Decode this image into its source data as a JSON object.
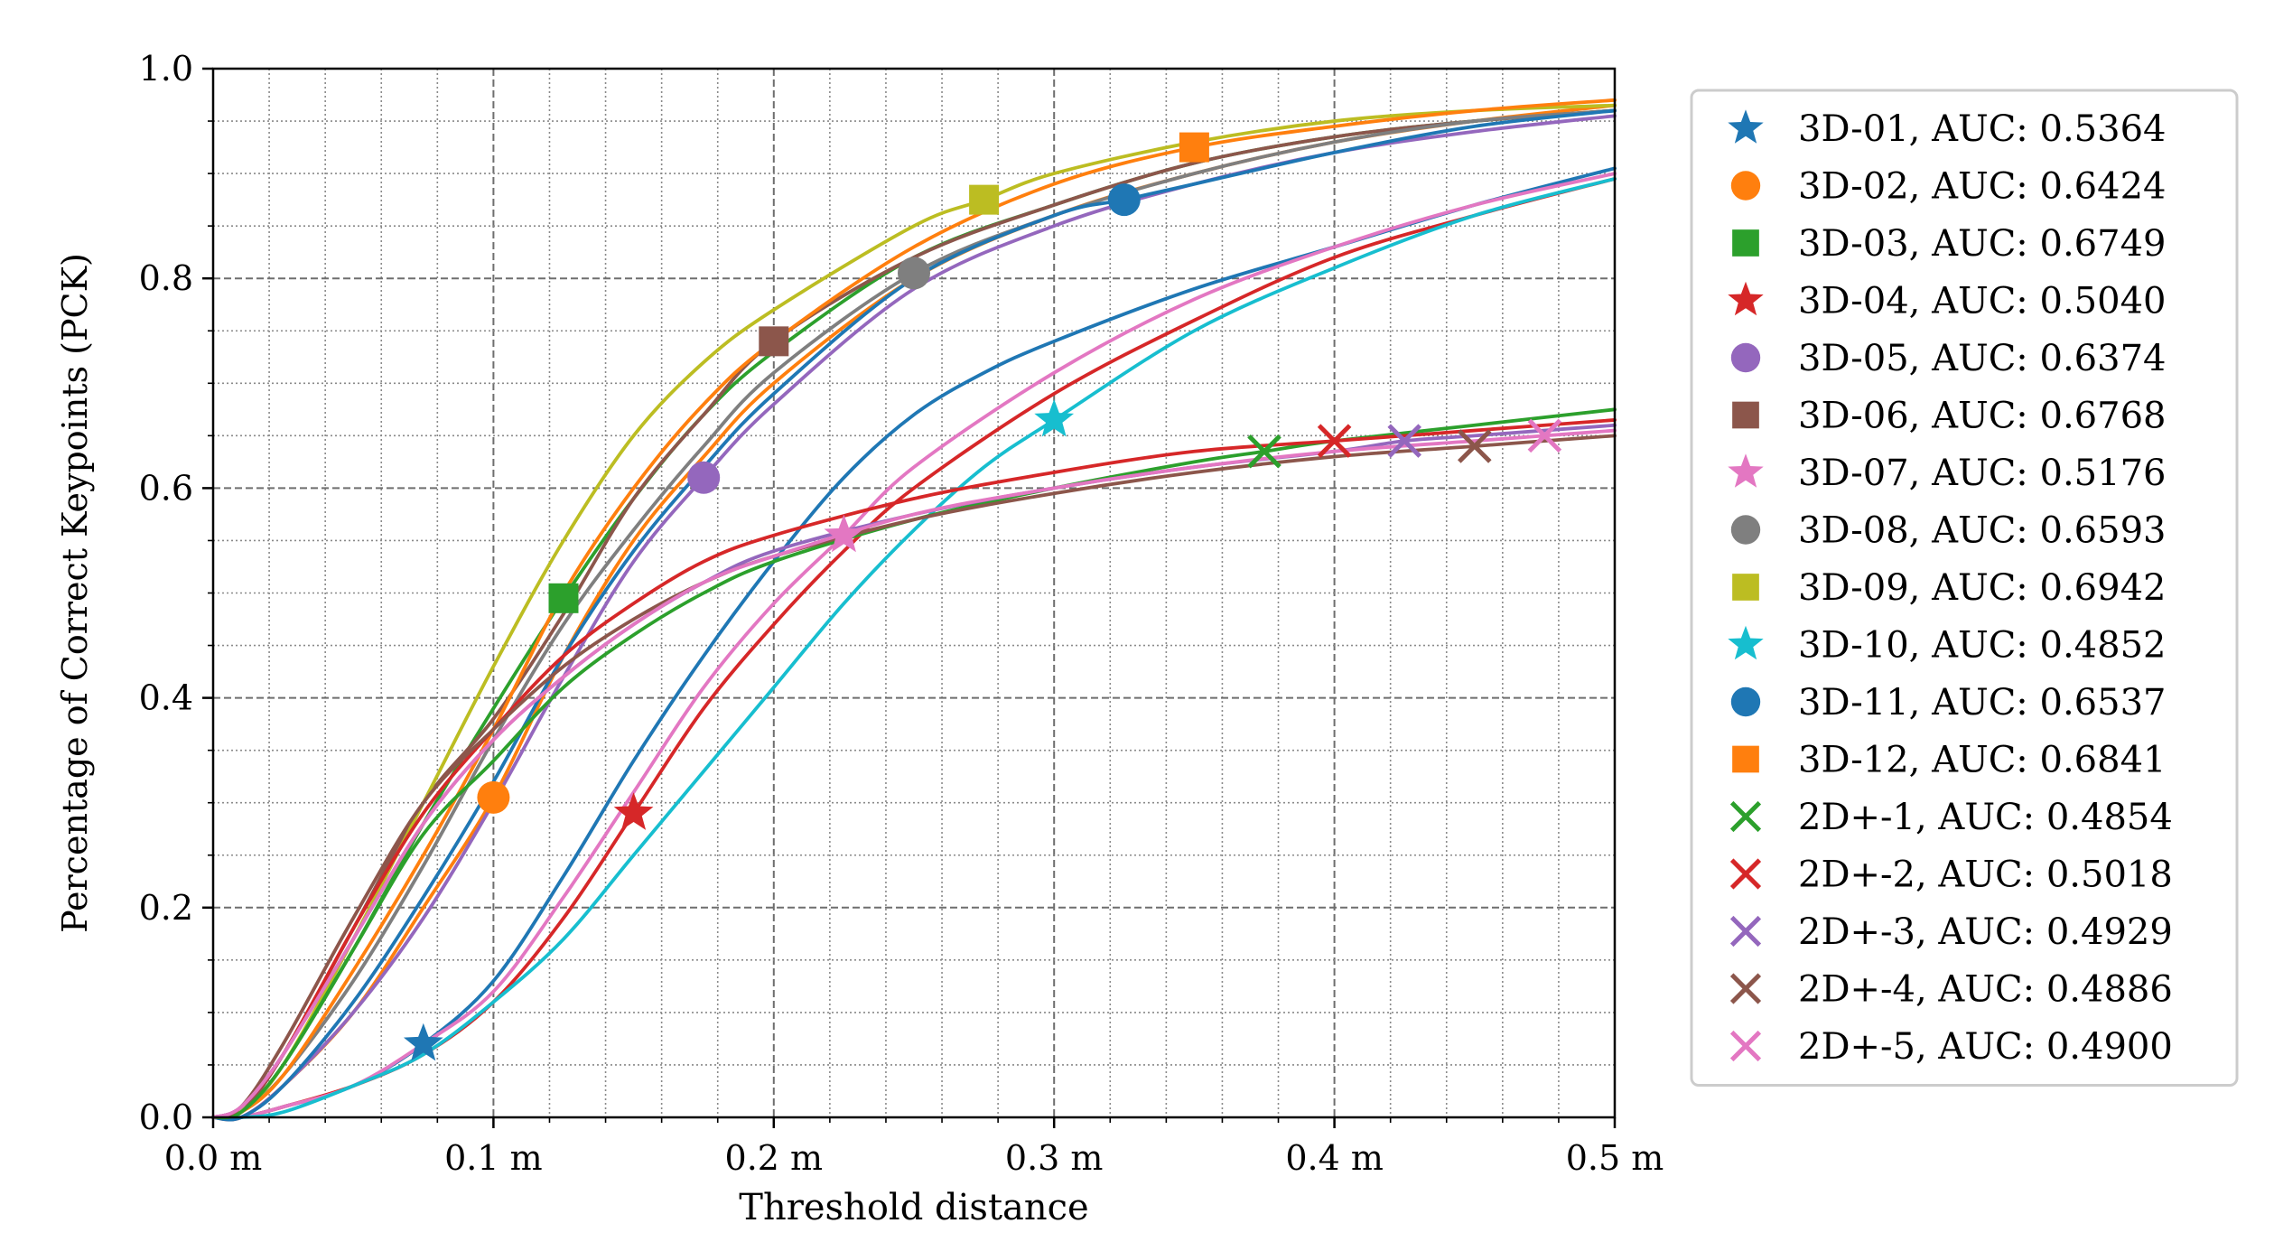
{
  "chart_data": {
    "type": "line",
    "title": "",
    "xlabel": "Threshold distance",
    "ylabel": "Percentage of Correct Keypoints (PCK)",
    "xlim": [
      0,
      0.5
    ],
    "ylim": [
      0,
      1
    ],
    "grid": true,
    "legend_position": "outside-right",
    "xticks": [
      {
        "value": 0.0,
        "label": "0.0 m"
      },
      {
        "value": 0.1,
        "label": "0.1 m"
      },
      {
        "value": 0.2,
        "label": "0.2 m"
      },
      {
        "value": 0.3,
        "label": "0.3 m"
      },
      {
        "value": 0.4,
        "label": "0.4 m"
      },
      {
        "value": 0.5,
        "label": "0.5 m"
      }
    ],
    "yticks": [
      {
        "value": 0.0,
        "label": "0.0"
      },
      {
        "value": 0.2,
        "label": "0.2"
      },
      {
        "value": 0.4,
        "label": "0.4"
      },
      {
        "value": 0.6,
        "label": "0.6"
      },
      {
        "value": 0.8,
        "label": "0.8"
      },
      {
        "value": 1.0,
        "label": "1.0"
      }
    ],
    "series": [
      {
        "name": "3D-01",
        "legend_label": "3D-01, AUC: 0.5364",
        "color": "#1f77b4",
        "marker": "star",
        "marker_at": [
          0.075,
          0.07
        ],
        "x": [
          0,
          0.01,
          0.025,
          0.05,
          0.075,
          0.1,
          0.125,
          0.15,
          0.175,
          0.2,
          0.225,
          0.25,
          0.275,
          0.3,
          0.35,
          0.4,
          0.45,
          0.5
        ],
        "y": [
          0,
          0.0,
          0.01,
          0.03,
          0.07,
          0.13,
          0.23,
          0.34,
          0.44,
          0.53,
          0.61,
          0.67,
          0.71,
          0.74,
          0.79,
          0.83,
          0.87,
          0.905
        ]
      },
      {
        "name": "3D-02",
        "legend_label": "3D-02, AUC: 0.6424",
        "color": "#ff7f0e",
        "marker": "circle",
        "marker_at": [
          0.1,
          0.305
        ],
        "x": [
          0,
          0.01,
          0.025,
          0.05,
          0.075,
          0.1,
          0.125,
          0.15,
          0.175,
          0.2,
          0.25,
          0.3,
          0.35,
          0.4,
          0.45,
          0.5
        ],
        "y": [
          0,
          0.0,
          0.03,
          0.1,
          0.2,
          0.305,
          0.44,
          0.55,
          0.63,
          0.7,
          0.8,
          0.86,
          0.9,
          0.93,
          0.95,
          0.965
        ]
      },
      {
        "name": "3D-03",
        "legend_label": "3D-03, AUC: 0.6749",
        "color": "#2ca02c",
        "marker": "square",
        "marker_at": [
          0.125,
          0.495
        ],
        "x": [
          0,
          0.01,
          0.025,
          0.05,
          0.075,
          0.1,
          0.125,
          0.15,
          0.175,
          0.2,
          0.25,
          0.3,
          0.35,
          0.4,
          0.45,
          0.5
        ],
        "y": [
          0,
          0.005,
          0.05,
          0.16,
          0.28,
          0.39,
          0.495,
          0.59,
          0.67,
          0.73,
          0.82,
          0.87,
          0.91,
          0.935,
          0.95,
          0.96
        ]
      },
      {
        "name": "3D-04",
        "legend_label": "3D-04, AUC: 0.5040",
        "color": "#d62728",
        "marker": "star",
        "marker_at": [
          0.15,
          0.29
        ],
        "x": [
          0,
          0.01,
          0.025,
          0.05,
          0.075,
          0.1,
          0.125,
          0.15,
          0.175,
          0.2,
          0.225,
          0.25,
          0.3,
          0.35,
          0.4,
          0.45,
          0.5
        ],
        "y": [
          0,
          0.0,
          0.01,
          0.03,
          0.06,
          0.11,
          0.19,
          0.29,
          0.39,
          0.47,
          0.54,
          0.6,
          0.69,
          0.76,
          0.82,
          0.86,
          0.895
        ]
      },
      {
        "name": "3D-05",
        "legend_label": "3D-05, AUC: 0.6374",
        "color": "#9467bd",
        "marker": "circle",
        "marker_at": [
          0.175,
          0.61
        ],
        "x": [
          0,
          0.01,
          0.025,
          0.05,
          0.075,
          0.1,
          0.125,
          0.15,
          0.175,
          0.2,
          0.25,
          0.3,
          0.35,
          0.4,
          0.45,
          0.5
        ],
        "y": [
          0,
          0.0,
          0.03,
          0.1,
          0.19,
          0.3,
          0.42,
          0.53,
          0.61,
          0.68,
          0.79,
          0.85,
          0.89,
          0.92,
          0.94,
          0.955
        ]
      },
      {
        "name": "3D-06",
        "legend_label": "3D-06, AUC: 0.6768",
        "color": "#8c564b",
        "marker": "square",
        "marker_at": [
          0.2,
          0.74
        ],
        "x": [
          0,
          0.01,
          0.025,
          0.05,
          0.075,
          0.1,
          0.125,
          0.15,
          0.175,
          0.2,
          0.25,
          0.3,
          0.35,
          0.4,
          0.45,
          0.5
        ],
        "y": [
          0,
          0.005,
          0.06,
          0.18,
          0.3,
          0.38,
          0.48,
          0.59,
          0.67,
          0.74,
          0.82,
          0.87,
          0.91,
          0.935,
          0.95,
          0.96
        ]
      },
      {
        "name": "3D-07",
        "legend_label": "3D-07, AUC: 0.5176",
        "color": "#e377c2",
        "marker": "star",
        "marker_at": [
          0.225,
          0.555
        ],
        "x": [
          0,
          0.01,
          0.025,
          0.05,
          0.075,
          0.1,
          0.125,
          0.15,
          0.175,
          0.2,
          0.225,
          0.25,
          0.3,
          0.35,
          0.4,
          0.45,
          0.5
        ],
        "y": [
          0,
          0.0,
          0.01,
          0.03,
          0.07,
          0.12,
          0.21,
          0.31,
          0.41,
          0.49,
          0.555,
          0.62,
          0.71,
          0.78,
          0.83,
          0.87,
          0.9
        ]
      },
      {
        "name": "3D-08",
        "legend_label": "3D-08, AUC: 0.6593",
        "color": "#7f7f7f",
        "marker": "circle",
        "marker_at": [
          0.25,
          0.805
        ],
        "x": [
          0,
          0.01,
          0.025,
          0.05,
          0.075,
          0.1,
          0.125,
          0.15,
          0.175,
          0.2,
          0.25,
          0.3,
          0.35,
          0.4,
          0.45,
          0.5
        ],
        "y": [
          0,
          0.005,
          0.04,
          0.13,
          0.24,
          0.36,
          0.47,
          0.56,
          0.64,
          0.71,
          0.805,
          0.86,
          0.9,
          0.93,
          0.95,
          0.96
        ]
      },
      {
        "name": "3D-09",
        "legend_label": "3D-09, AUC: 0.6942",
        "color": "#bcbd22",
        "marker": "square",
        "marker_at": [
          0.275,
          0.875
        ],
        "x": [
          0,
          0.01,
          0.025,
          0.05,
          0.075,
          0.1,
          0.125,
          0.15,
          0.175,
          0.2,
          0.25,
          0.275,
          0.3,
          0.35,
          0.4,
          0.45,
          0.5
        ],
        "y": [
          0,
          0.005,
          0.05,
          0.17,
          0.3,
          0.43,
          0.55,
          0.65,
          0.72,
          0.77,
          0.85,
          0.875,
          0.9,
          0.93,
          0.95,
          0.96,
          0.965
        ]
      },
      {
        "name": "3D-10",
        "legend_label": "3D-10, AUC: 0.4852",
        "color": "#17becf",
        "marker": "star",
        "marker_at": [
          0.3,
          0.665
        ],
        "x": [
          0,
          0.01,
          0.025,
          0.05,
          0.075,
          0.1,
          0.125,
          0.15,
          0.175,
          0.2,
          0.225,
          0.25,
          0.275,
          0.3,
          0.35,
          0.4,
          0.45,
          0.5
        ],
        "y": [
          0,
          0.0,
          0.005,
          0.03,
          0.06,
          0.11,
          0.17,
          0.25,
          0.33,
          0.41,
          0.49,
          0.56,
          0.62,
          0.665,
          0.75,
          0.81,
          0.86,
          0.895
        ]
      },
      {
        "name": "3D-11",
        "legend_label": "3D-11, AUC: 0.6537",
        "color": "#1f77b4",
        "marker": "circle",
        "marker_at": [
          0.325,
          0.875
        ],
        "x": [
          0,
          0.01,
          0.025,
          0.05,
          0.075,
          0.1,
          0.125,
          0.15,
          0.175,
          0.2,
          0.25,
          0.3,
          0.325,
          0.35,
          0.4,
          0.45,
          0.5
        ],
        "y": [
          0,
          0.0,
          0.03,
          0.11,
          0.21,
          0.32,
          0.44,
          0.54,
          0.62,
          0.69,
          0.8,
          0.86,
          0.875,
          0.89,
          0.92,
          0.945,
          0.96
        ]
      },
      {
        "name": "3D-12",
        "legend_label": "3D-12, AUC: 0.6841",
        "color": "#ff7f0e",
        "marker": "square",
        "marker_at": [
          0.35,
          0.925
        ],
        "x": [
          0,
          0.01,
          0.025,
          0.05,
          0.075,
          0.1,
          0.125,
          0.15,
          0.175,
          0.2,
          0.25,
          0.3,
          0.35,
          0.4,
          0.45,
          0.5
        ],
        "y": [
          0,
          0.005,
          0.04,
          0.14,
          0.25,
          0.37,
          0.5,
          0.6,
          0.68,
          0.74,
          0.83,
          0.89,
          0.925,
          0.945,
          0.96,
          0.97
        ]
      },
      {
        "name": "2D+-1",
        "legend_label": "2D+-1, AUC: 0.4854",
        "color": "#2ca02c",
        "marker": "x",
        "marker_at": [
          0.375,
          0.635
        ],
        "x": [
          0,
          0.01,
          0.025,
          0.05,
          0.075,
          0.1,
          0.125,
          0.15,
          0.175,
          0.2,
          0.25,
          0.3,
          0.35,
          0.375,
          0.4,
          0.45,
          0.5
        ],
        "y": [
          0,
          0.005,
          0.05,
          0.16,
          0.27,
          0.34,
          0.41,
          0.46,
          0.5,
          0.53,
          0.57,
          0.6,
          0.625,
          0.635,
          0.645,
          0.66,
          0.675
        ]
      },
      {
        "name": "2D+-2",
        "legend_label": "2D+-2, AUC: 0.5018",
        "color": "#d62728",
        "marker": "x",
        "marker_at": [
          0.4,
          0.645
        ],
        "x": [
          0,
          0.01,
          0.025,
          0.05,
          0.075,
          0.1,
          0.125,
          0.15,
          0.175,
          0.2,
          0.25,
          0.3,
          0.35,
          0.4,
          0.45,
          0.5
        ],
        "y": [
          0,
          0.01,
          0.06,
          0.18,
          0.29,
          0.37,
          0.44,
          0.49,
          0.53,
          0.555,
          0.59,
          0.615,
          0.635,
          0.645,
          0.655,
          0.665
        ]
      },
      {
        "name": "2D+-3",
        "legend_label": "2D+-3, AUC: 0.4929",
        "color": "#9467bd",
        "marker": "x",
        "marker_at": [
          0.425,
          0.645
        ],
        "x": [
          0,
          0.01,
          0.025,
          0.05,
          0.075,
          0.1,
          0.125,
          0.15,
          0.175,
          0.2,
          0.25,
          0.3,
          0.35,
          0.4,
          0.425,
          0.45,
          0.5
        ],
        "y": [
          0,
          0.01,
          0.06,
          0.17,
          0.28,
          0.36,
          0.42,
          0.47,
          0.51,
          0.54,
          0.575,
          0.6,
          0.62,
          0.635,
          0.645,
          0.65,
          0.66
        ]
      },
      {
        "name": "2D+-4",
        "legend_label": "2D+-4, AUC: 0.4886",
        "color": "#8c564b",
        "marker": "x",
        "marker_at": [
          0.45,
          0.64
        ],
        "x": [
          0,
          0.01,
          0.025,
          0.05,
          0.075,
          0.1,
          0.125,
          0.15,
          0.175,
          0.2,
          0.25,
          0.3,
          0.35,
          0.4,
          0.45,
          0.5
        ],
        "y": [
          0,
          0.01,
          0.07,
          0.19,
          0.3,
          0.37,
          0.43,
          0.475,
          0.51,
          0.535,
          0.57,
          0.595,
          0.615,
          0.63,
          0.64,
          0.65
        ]
      },
      {
        "name": "2D+-5",
        "legend_label": "2D+-5, AUC: 0.4900",
        "color": "#e377c2",
        "marker": "x",
        "marker_at": [
          0.475,
          0.65
        ],
        "x": [
          0,
          0.01,
          0.025,
          0.05,
          0.075,
          0.1,
          0.125,
          0.15,
          0.175,
          0.2,
          0.25,
          0.3,
          0.35,
          0.4,
          0.45,
          0.475,
          0.5
        ],
        "y": [
          0,
          0.01,
          0.06,
          0.17,
          0.28,
          0.36,
          0.42,
          0.47,
          0.51,
          0.535,
          0.575,
          0.6,
          0.62,
          0.635,
          0.645,
          0.65,
          0.655
        ]
      }
    ]
  }
}
